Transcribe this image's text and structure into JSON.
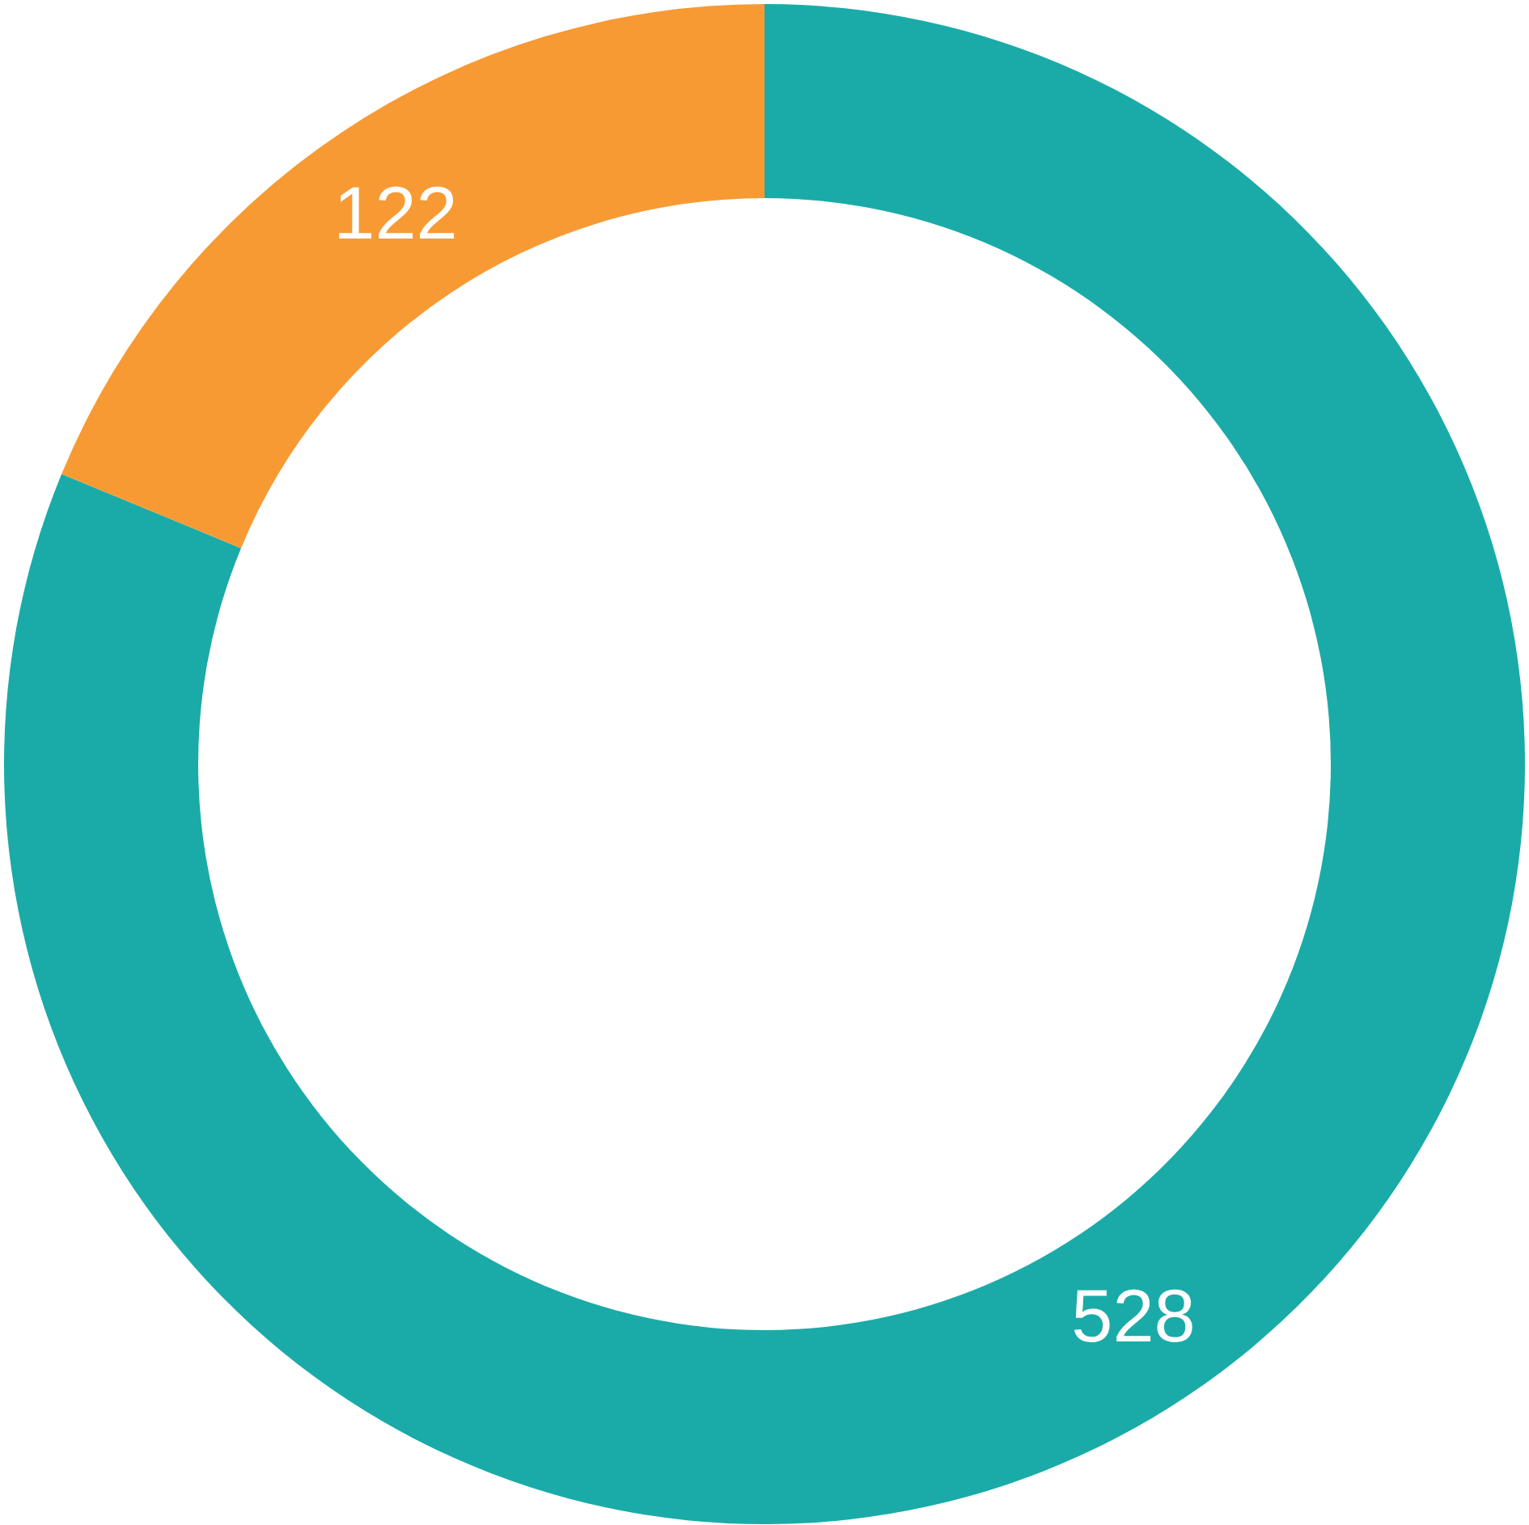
{
  "chart_data": {
    "type": "donut",
    "categories": [
      null,
      null
    ],
    "values": [
      528,
      122
    ],
    "colors": [
      "#1aaba8",
      "#f79a34"
    ],
    "data_labels": true
  }
}
